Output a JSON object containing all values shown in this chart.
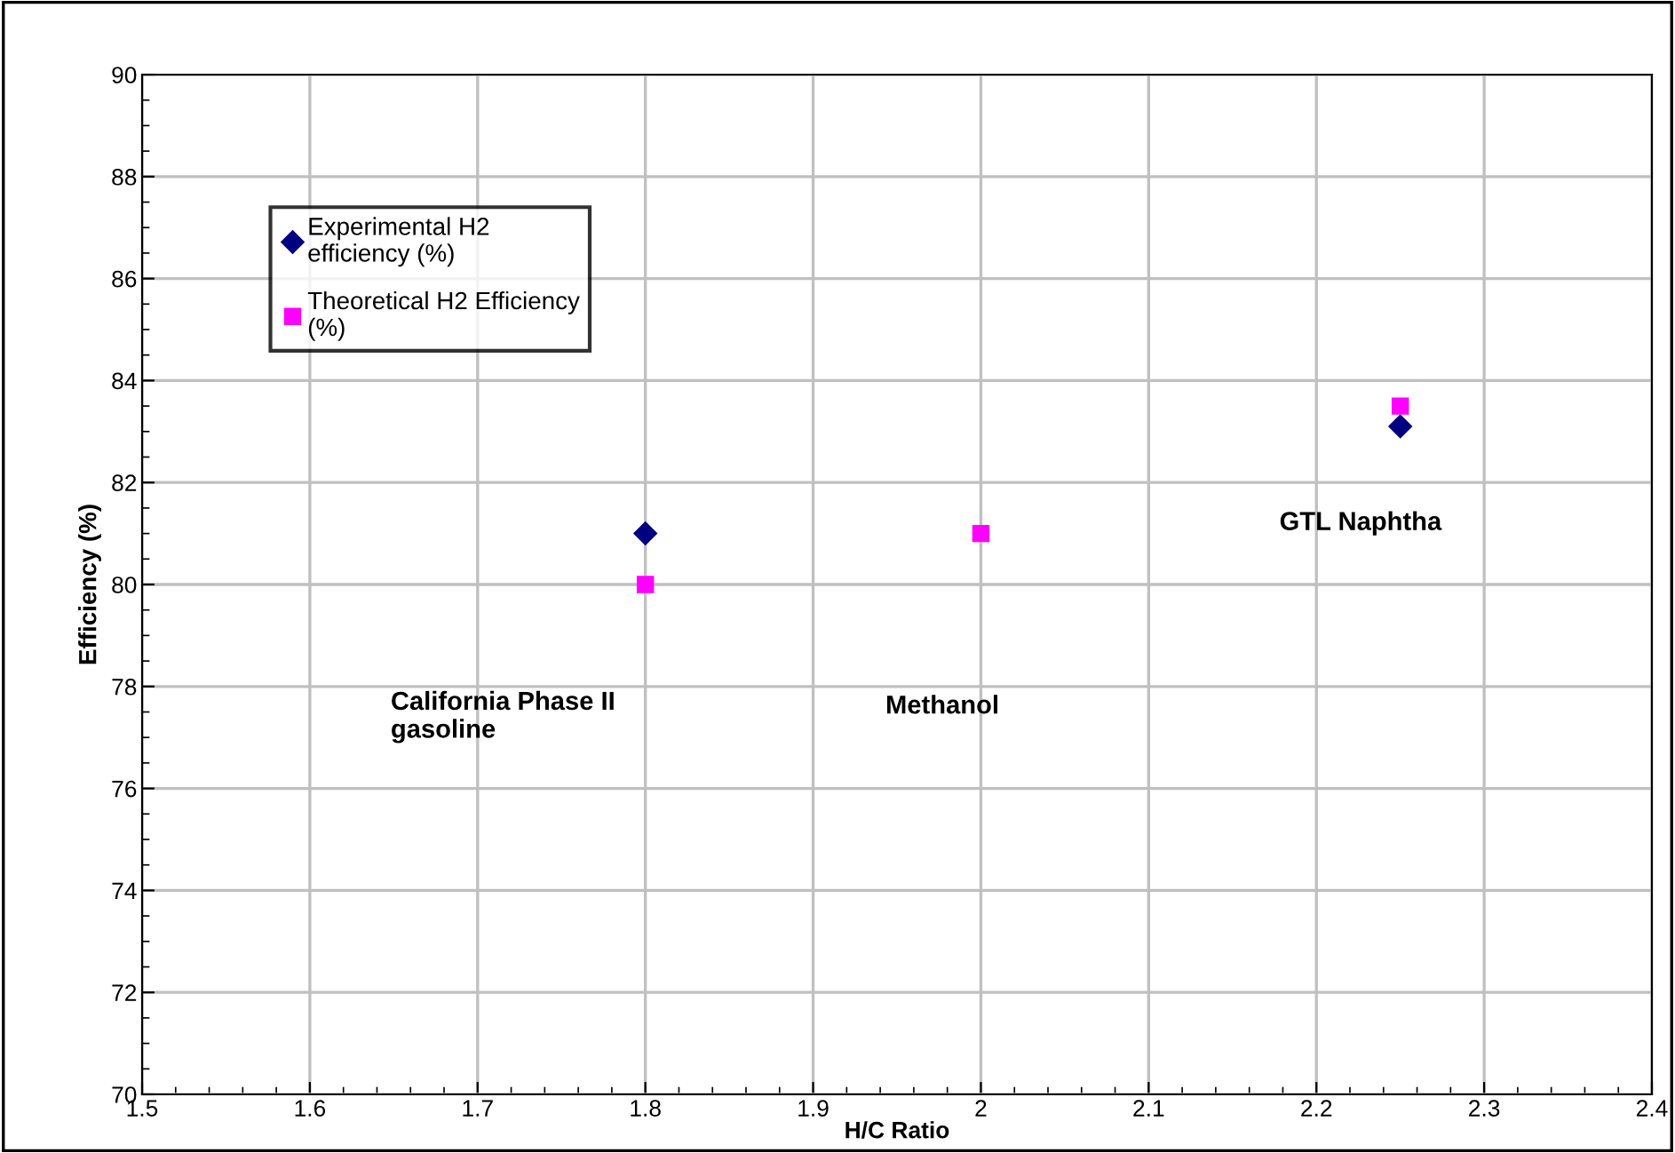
{
  "chart_data": {
    "type": "scatter",
    "xlabel": "H/C Ratio",
    "ylabel": "Efficiency (%)",
    "x": [
      1.8,
      2.0,
      2.25
    ],
    "series": [
      {
        "name": "Experimental H2 efficiency (%)",
        "color": "#000080",
        "marker": "diamond",
        "values": [
          81.0,
          null,
          83.1
        ]
      },
      {
        "name": "Theoretical H2 Efficiency (%)",
        "color": "#ff00ff",
        "marker": "square",
        "values": [
          80.0,
          81.0,
          83.5
        ]
      }
    ],
    "annotations": [
      "California Phase II\ngasoline",
      "Methanol",
      "GTL Naphtha"
    ],
    "xlim": [
      1.5,
      2.4
    ],
    "xticks": [
      1.5,
      1.6,
      1.7,
      1.8,
      1.9,
      {
        "value": 2,
        "label": "2"
      },
      2.1,
      2.2,
      2.3,
      2.4
    ],
    "ylim": [
      70,
      90
    ],
    "yticks": [
      70,
      72,
      74,
      76,
      78,
      80,
      82,
      84,
      86,
      88,
      90
    ],
    "grid": true,
    "legend": "top left"
  }
}
